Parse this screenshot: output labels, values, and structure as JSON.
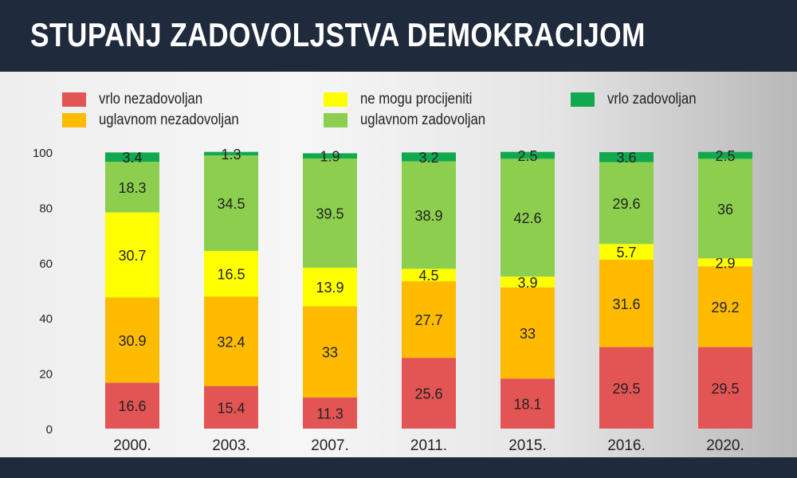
{
  "title": "STUPANJ ZADOVOLJSTVA DEMOKRACIJOM",
  "colors": {
    "header_bg": "#1f2a3c",
    "vrlo_nezadovoljan": "#e35555",
    "uglavnom_nezadovoljan": "#ffbb00",
    "ne_mogu_procijeniti": "#ffff00",
    "uglavnom_zadovoljan": "#8ccf4f",
    "vrlo_zadovoljan": "#11a94f"
  },
  "chart_data": {
    "type": "bar",
    "stacked": true,
    "title": "STUPANJ ZADOVOLJSTVA DEMOKRACIJOM",
    "categories": [
      "2000.",
      "2003.",
      "2007.",
      "2011.",
      "2015.",
      "2016.",
      "2020."
    ],
    "series": [
      {
        "name": "vrlo nezadovoljan",
        "color": "#e35555",
        "values": [
          16.6,
          15.4,
          11.3,
          25.6,
          18.1,
          29.5,
          29.5
        ]
      },
      {
        "name": "uglavnom nezadovoljan",
        "color": "#ffbb00",
        "values": [
          30.9,
          32.4,
          33,
          27.7,
          33,
          31.6,
          29.2
        ]
      },
      {
        "name": "ne mogu procijeniti",
        "color": "#ffff00",
        "values": [
          30.7,
          16.5,
          13.9,
          4.5,
          3.9,
          5.7,
          2.9
        ]
      },
      {
        "name": "uglavnom zadovoljan",
        "color": "#8ccf4f",
        "values": [
          18.3,
          34.5,
          39.5,
          38.9,
          42.6,
          29.6,
          36
        ]
      },
      {
        "name": "vrlo zadovoljan",
        "color": "#11a94f",
        "values": [
          3.4,
          1.3,
          1.9,
          3.2,
          2.5,
          3.6,
          2.5
        ]
      }
    ],
    "value_labels": [
      [
        "16.6",
        "15.4",
        "11.3",
        "25.6",
        "18.1",
        "29.5",
        "29.5"
      ],
      [
        "30.9",
        "32.4",
        "33",
        "27.7",
        "33",
        "31.6",
        "29.2"
      ],
      [
        "30.7",
        "16.5",
        "13.9",
        "4.5",
        "3.9",
        "5.7",
        "2.9"
      ],
      [
        "18.3",
        "34.5",
        "39.5",
        "38.9",
        "42.6",
        "29.6",
        "36"
      ],
      [
        "3.4",
        "1.3",
        "1.9",
        "3.2",
        "2.5",
        "3.6",
        "2.5"
      ]
    ],
    "ylim": [
      0,
      100
    ],
    "yticks": [
      "0",
      "20",
      "40",
      "60",
      "80",
      "100"
    ],
    "xlabel": "",
    "ylabel": "",
    "grid": false,
    "legend_placement": "top"
  }
}
